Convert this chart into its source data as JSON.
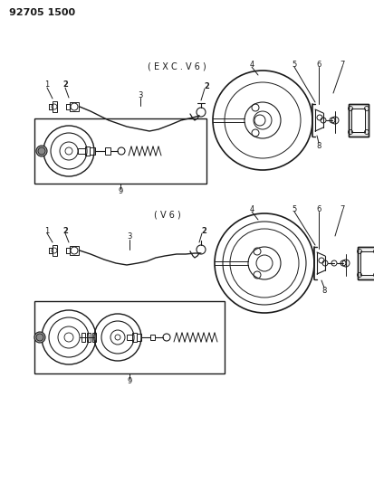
{
  "title": "92705 1500",
  "bg_color": "#ffffff",
  "line_color": "#1a1a1a",
  "fig_width": 4.13,
  "fig_height": 5.33,
  "dpi": 100,
  "top_label": "( E X C . V 6 )",
  "bottom_label": "( V 6 )"
}
